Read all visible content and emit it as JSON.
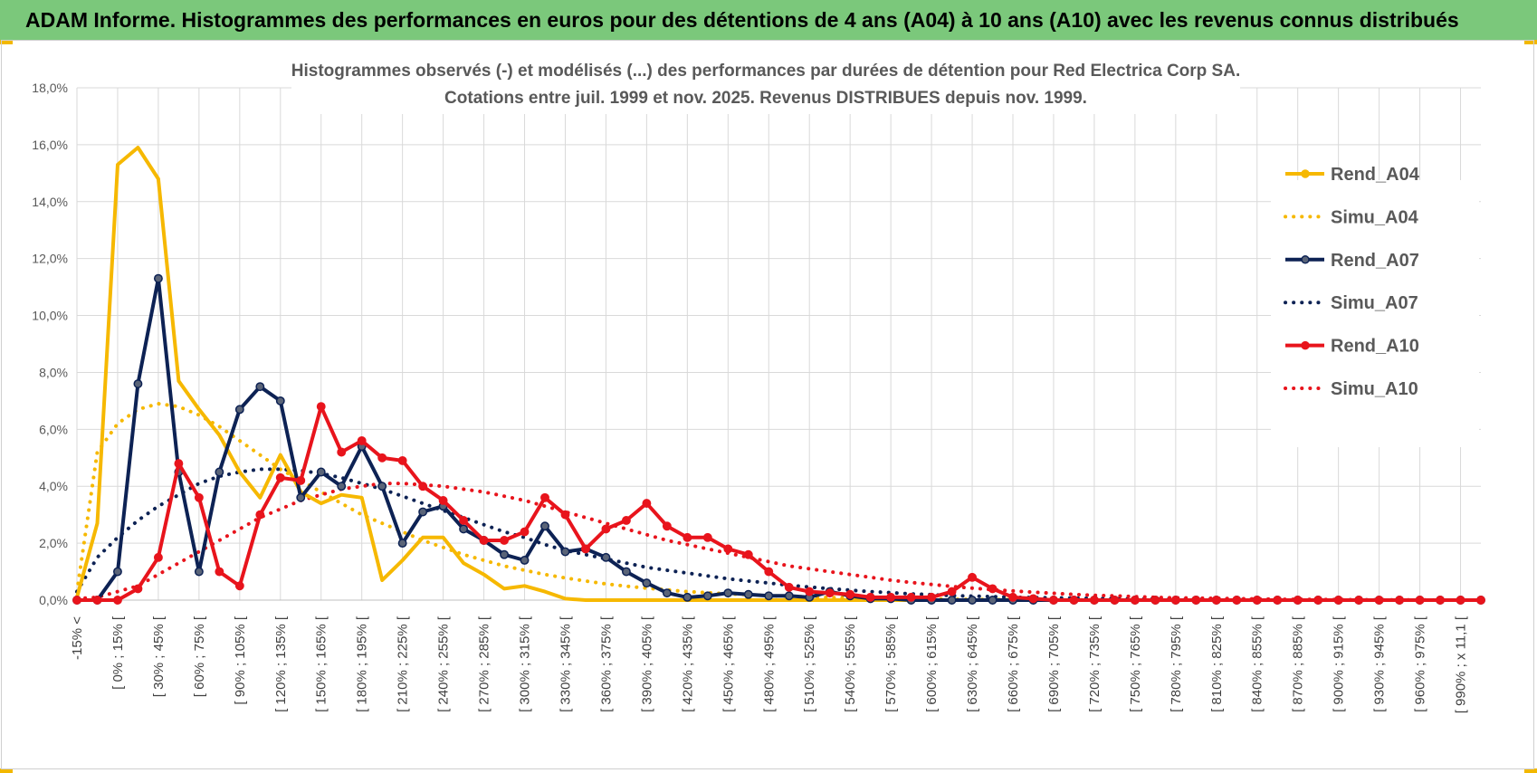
{
  "header": {
    "title": "ADAM Informe. Histogrammes des performances en euros pour des détentions de 4 ans (A04) à 10 ans (A10) avec les revenus connus distribués"
  },
  "chart_data": {
    "type": "line",
    "title": "Histogrammes observés (-) et modélisés (...) des performances par durées de détention pour Red Electrica Corp SA.",
    "subtitle": "Cotations entre juil. 1999 et nov. 2025. Revenus DISTRIBUES depuis nov. 1999.",
    "xlabel": "",
    "ylabel": "",
    "ylim": [
      0,
      18
    ],
    "y_ticks": [
      "0,0%",
      "2,0%",
      "4,0%",
      "6,0%",
      "8,0%",
      "10,0%",
      "12,0%",
      "14,0%",
      "16,0%",
      "18,0%"
    ],
    "grid": true,
    "legend_position": "right",
    "x_ticks": [
      "-15% <",
      "[ 0% ; 15% [",
      "[ 30% ; 45% [",
      "[ 60% ; 75% [",
      "[ 90% ; 105% [",
      "[ 120% ; 135% [",
      "[ 150% ; 165% [",
      "[ 180% ; 195% [",
      "[ 210% ; 225% [",
      "[ 240% ; 255% [",
      "[ 270% ; 285% [",
      "[ 300% ; 315% [",
      "[ 330% ; 345% [",
      "[ 360% ; 375% [",
      "[ 390% ; 405% [",
      "[ 420% ; 435% [",
      "[ 450% ; 465% [",
      "[ 480% ; 495% [",
      "[ 510% ; 525% [",
      "[ 540% ; 555% [",
      "[ 570% ; 585% [",
      "[ 600% ; 615% [",
      "[ 630% ; 645% [",
      "[ 660% ; 675% [",
      "[ 690% ; 705% [",
      "[ 720% ; 735% [",
      "[ 750% ; 765% [",
      "[ 780% ; 795% [",
      "[ 810% ; 825% [",
      "[ 840% ; 855% [",
      "[ 870% ; 885% [",
      "[ 900% ; 915% [",
      "[ 930% ; 945% [",
      "[ 960% ; 975% [",
      "[ 990% ; x 11,1 ["
    ],
    "num_bins": 70,
    "series": [
      {
        "name": "Rend_A04",
        "style": "solid",
        "color": "#f6b800",
        "markers": false,
        "values": [
          0.1,
          2.7,
          15.3,
          15.9,
          14.8,
          7.7,
          6.7,
          5.8,
          4.5,
          3.6,
          5.1,
          3.8,
          3.4,
          3.7,
          3.6,
          0.7,
          1.4,
          2.2,
          2.2,
          1.3,
          0.9,
          0.4,
          0.5,
          0.3,
          0.05,
          0,
          0,
          0,
          0,
          0,
          0,
          0,
          0,
          0,
          0,
          0,
          0,
          0,
          0,
          0,
          0,
          0,
          0,
          0,
          0,
          0,
          0,
          0,
          0,
          0,
          0,
          0,
          0,
          0,
          0,
          0,
          0,
          0,
          0,
          0,
          0,
          0,
          0,
          0,
          0,
          0,
          0,
          0,
          0,
          0
        ]
      },
      {
        "name": "Simu_A04",
        "style": "dotted",
        "color": "#f6b800",
        "markers": false,
        "values": [
          0.3,
          5.2,
          6.2,
          6.7,
          6.9,
          6.8,
          6.5,
          6.1,
          5.6,
          5.1,
          4.6,
          4.2,
          3.8,
          3.4,
          3.0,
          2.7,
          2.4,
          2.1,
          1.85,
          1.6,
          1.4,
          1.2,
          1.05,
          0.9,
          0.78,
          0.67,
          0.57,
          0.49,
          0.42,
          0.36,
          0.3,
          0.26,
          0.22,
          0.19,
          0.16,
          0.13,
          0.11,
          0.09,
          0.08,
          0.07,
          0.06,
          0.05,
          0.04,
          0.03,
          0.03,
          0.02,
          0.02,
          0.02,
          0.01,
          0.01,
          0.01,
          0.01,
          0.01,
          0,
          0,
          0,
          0,
          0,
          0,
          0,
          0,
          0,
          0,
          0,
          0,
          0,
          0,
          0,
          0,
          0
        ]
      },
      {
        "name": "Rend_A07",
        "style": "solid",
        "color": "#0d2254",
        "markers": true,
        "values": [
          0,
          0,
          1.0,
          7.6,
          11.3,
          4.5,
          1.0,
          4.5,
          6.7,
          7.5,
          7.0,
          3.6,
          4.5,
          4.0,
          5.4,
          4.0,
          2.0,
          3.1,
          3.3,
          2.5,
          2.1,
          1.6,
          1.4,
          2.6,
          1.7,
          1.8,
          1.5,
          1.0,
          0.6,
          0.25,
          0.1,
          0.15,
          0.25,
          0.2,
          0.15,
          0.15,
          0.1,
          0.3,
          0.15,
          0.05,
          0.05,
          0,
          0,
          0,
          0,
          0,
          0,
          0,
          0,
          0,
          0,
          0,
          0,
          0,
          0,
          0,
          0,
          0,
          0,
          0,
          0,
          0,
          0,
          0,
          0,
          0,
          0,
          0,
          0,
          0
        ]
      },
      {
        "name": "Simu_A07",
        "style": "dotted",
        "color": "#0d2254",
        "markers": false,
        "values": [
          0.3,
          1.5,
          2.2,
          2.8,
          3.3,
          3.7,
          4.1,
          4.35,
          4.5,
          4.6,
          4.6,
          4.55,
          4.45,
          4.3,
          4.1,
          3.9,
          3.65,
          3.4,
          3.15,
          2.9,
          2.65,
          2.4,
          2.2,
          1.95,
          1.75,
          1.6,
          1.45,
          1.3,
          1.15,
          1.05,
          0.95,
          0.85,
          0.75,
          0.67,
          0.6,
          0.52,
          0.46,
          0.4,
          0.35,
          0.3,
          0.26,
          0.22,
          0.19,
          0.16,
          0.14,
          0.12,
          0.1,
          0.09,
          0.08,
          0.07,
          0.06,
          0.05,
          0.04,
          0.04,
          0.03,
          0.03,
          0.02,
          0.02,
          0.02,
          0.01,
          0.01,
          0.01,
          0.01,
          0.01,
          0.01,
          0,
          0,
          0,
          0,
          0
        ]
      },
      {
        "name": "Rend_A10",
        "style": "solid",
        "color": "#e8141c",
        "markers": true,
        "values": [
          0,
          0,
          0,
          0.4,
          1.5,
          4.8,
          3.6,
          1.0,
          0.5,
          3.0,
          4.3,
          4.2,
          6.8,
          5.2,
          5.6,
          5.0,
          4.9,
          4.0,
          3.5,
          2.8,
          2.1,
          2.1,
          2.4,
          3.6,
          3.0,
          1.8,
          2.5,
          2.8,
          3.4,
          2.6,
          2.2,
          2.2,
          1.8,
          1.6,
          1.0,
          0.45,
          0.3,
          0.25,
          0.2,
          0.1,
          0.1,
          0.1,
          0.1,
          0.3,
          0.8,
          0.4,
          0.1,
          0.05,
          0,
          0,
          0,
          0,
          0,
          0,
          0,
          0,
          0,
          0,
          0,
          0,
          0,
          0,
          0,
          0,
          0,
          0,
          0,
          0,
          0,
          0
        ]
      },
      {
        "name": "Simu_A10",
        "style": "dotted",
        "color": "#e8141c",
        "markers": false,
        "values": [
          0.05,
          0.1,
          0.3,
          0.5,
          0.9,
          1.3,
          1.7,
          2.1,
          2.5,
          2.9,
          3.2,
          3.5,
          3.7,
          3.9,
          4.0,
          4.1,
          4.1,
          4.05,
          4.0,
          3.9,
          3.8,
          3.65,
          3.5,
          3.3,
          3.1,
          2.9,
          2.7,
          2.5,
          2.3,
          2.1,
          1.95,
          1.8,
          1.65,
          1.5,
          1.35,
          1.2,
          1.1,
          1.0,
          0.9,
          0.8,
          0.7,
          0.62,
          0.55,
          0.48,
          0.42,
          0.37,
          0.32,
          0.28,
          0.24,
          0.2,
          0.17,
          0.15,
          0.12,
          0.1,
          0.08,
          0.07,
          0.06,
          0.05,
          0.04,
          0.03,
          0.03,
          0.02,
          0.02,
          0.01,
          0.01,
          0.01,
          0.01,
          0,
          0,
          0
        ]
      }
    ]
  }
}
